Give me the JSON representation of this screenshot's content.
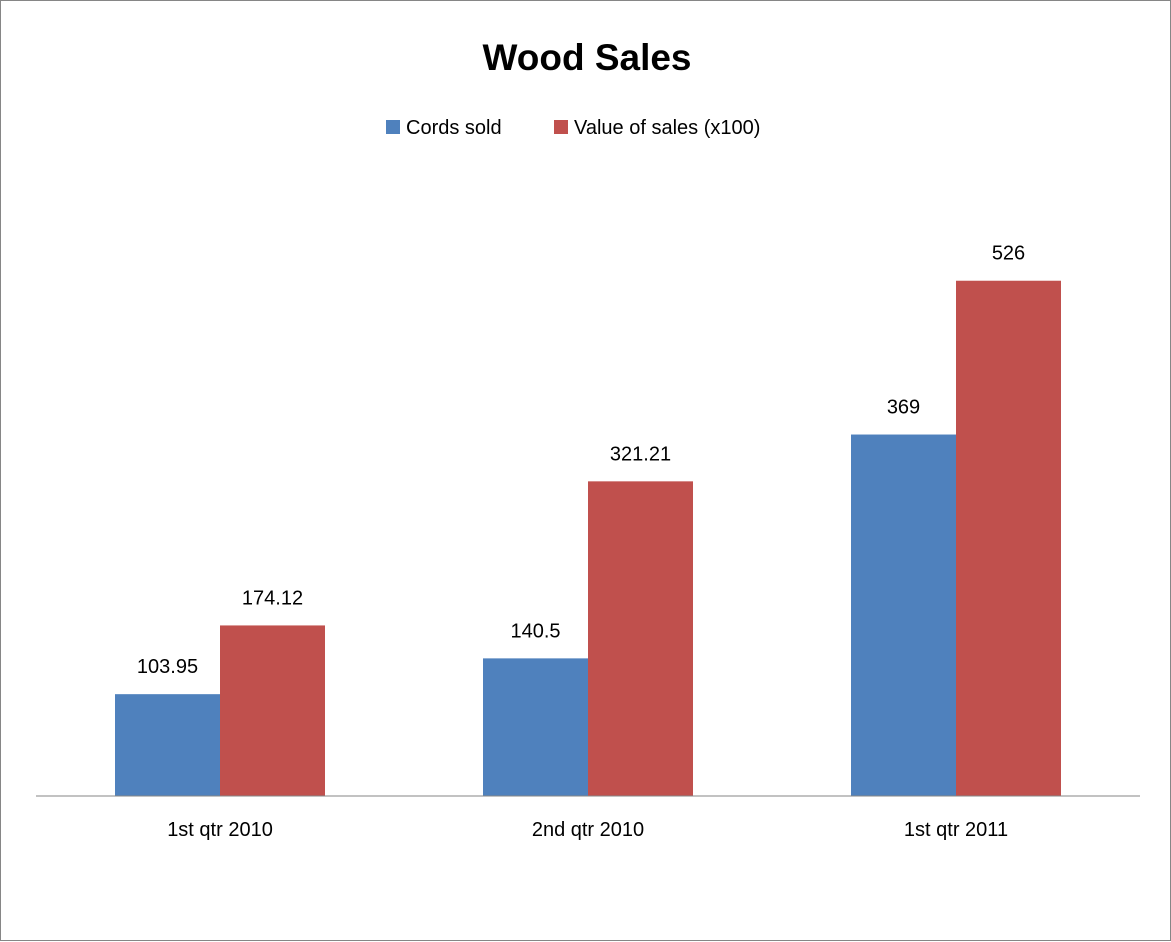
{
  "chart_data": {
    "type": "bar",
    "title": "Wood Sales",
    "xlabel": "",
    "ylabel": "",
    "categories": [
      "1st qtr 2010",
      "2nd qtr 2010",
      "1st qtr 2011"
    ],
    "series": [
      {
        "name": "Cords sold",
        "values": [
          103.95,
          140.5,
          369
        ],
        "labels": [
          "103.95",
          "140.5",
          "369"
        ],
        "color": "#4F81BD"
      },
      {
        "name": "Value of sales (x100)",
        "values": [
          174.12,
          321.21,
          526
        ],
        "labels": [
          "174.12",
          "321.21",
          "526"
        ],
        "color": "#C0504D"
      }
    ],
    "ylim": [
      0,
      600
    ],
    "grid": false,
    "legend_position": "top"
  }
}
